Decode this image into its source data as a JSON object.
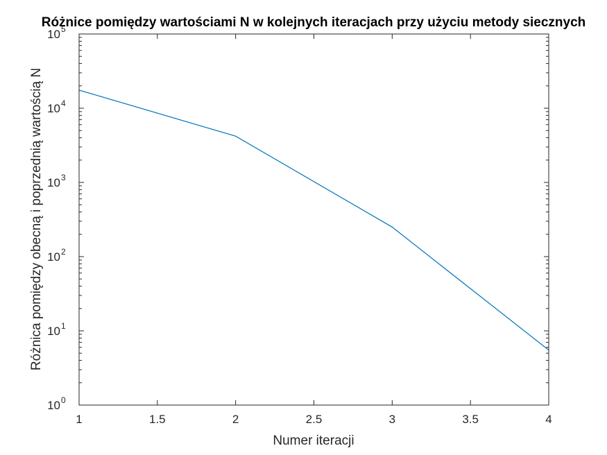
{
  "chart_data": {
    "type": "line",
    "title": "Różnice pomiędzy wartościami N w kolejnych iteracjach przy użyciu metody siecznych",
    "xlabel": "Numer iteracji",
    "ylabel": "Różnica pomiędzy obecną i poprzednią wartością N",
    "xlim": [
      1,
      4
    ],
    "ylim": [
      1,
      100000
    ],
    "yscale": "log",
    "grid": false,
    "x_ticks": [
      "1",
      "1.5",
      "2",
      "2.5",
      "3",
      "3.5",
      "4"
    ],
    "y_ticks": [
      {
        "base": "10",
        "exp": "0"
      },
      {
        "base": "10",
        "exp": "1"
      },
      {
        "base": "10",
        "exp": "2"
      },
      {
        "base": "10",
        "exp": "3"
      },
      {
        "base": "10",
        "exp": "4"
      },
      {
        "base": "10",
        "exp": "5"
      }
    ],
    "x": [
      1,
      2,
      3,
      4
    ],
    "series": [
      {
        "color": "#0072BD",
        "values": [
          17500,
          4200,
          250,
          5.5
        ]
      }
    ]
  }
}
